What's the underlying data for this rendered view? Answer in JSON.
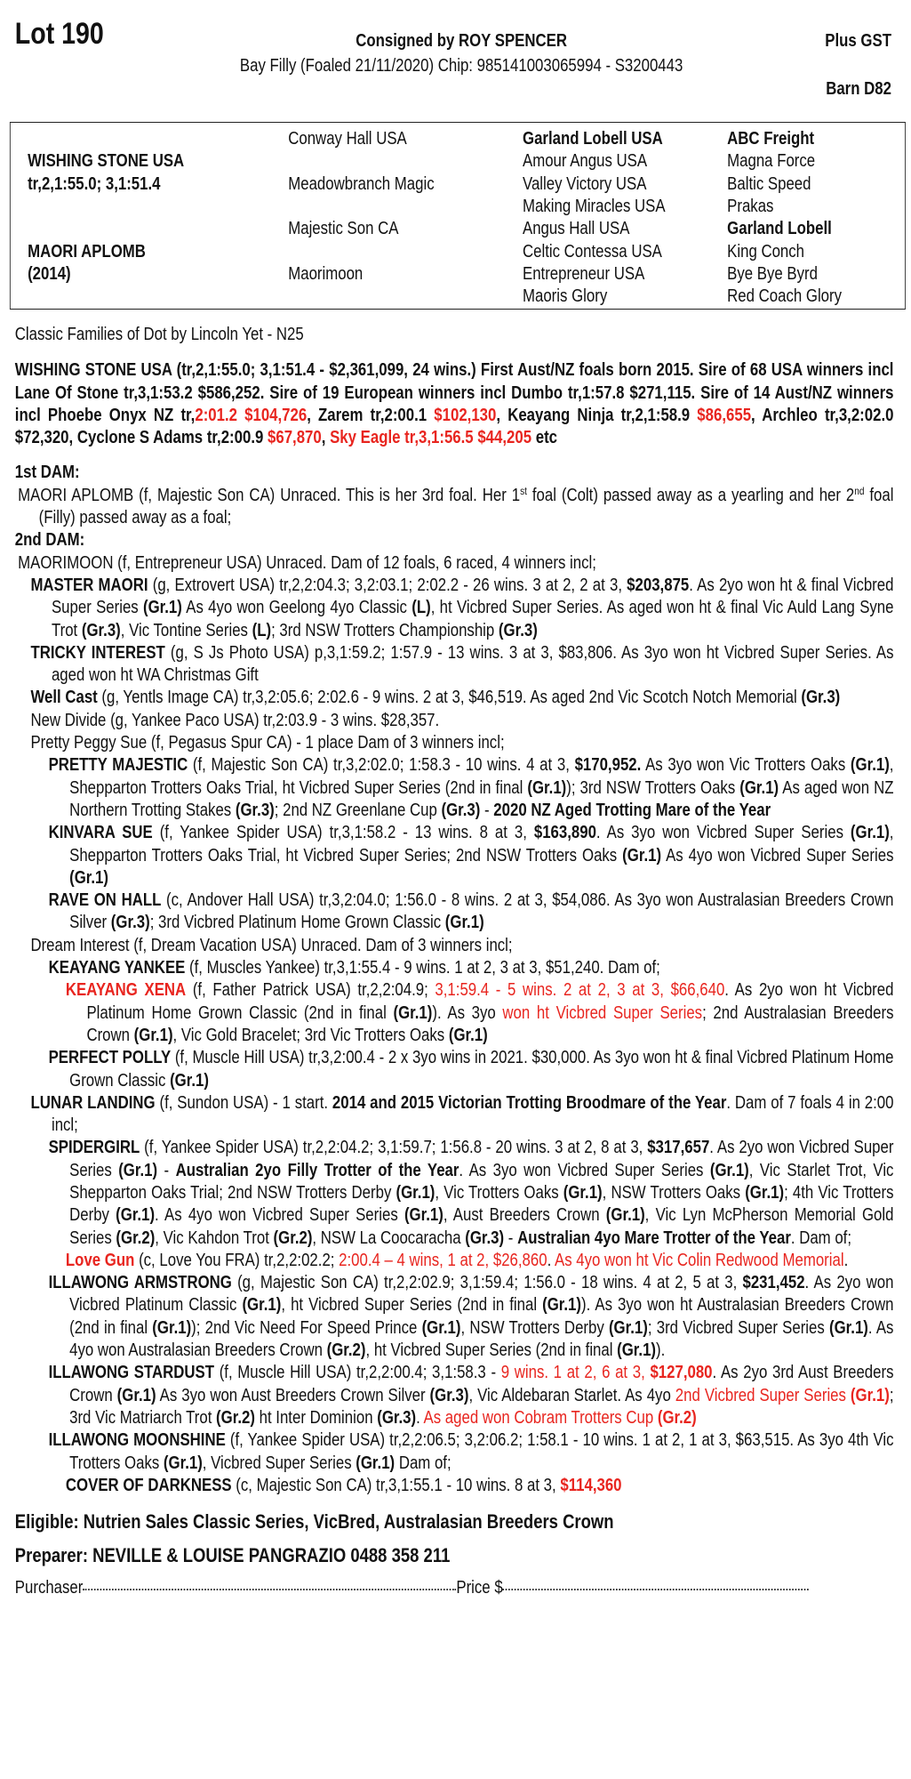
{
  "header": {
    "lot": "Lot 190",
    "consigned": "Consigned by ROY SPENCER",
    "plus_gst": "Plus GST",
    "description": "Bay Filly (Foaled 21/11/2020) Chip: 985141003065994 - S3200443",
    "barn": "Barn D82"
  },
  "pedigree": {
    "sire_name": "WISHING STONE USA",
    "sire_record": "tr,2,1:55.0; 3,1:51.4",
    "dam_name": "MAORI APLOMB",
    "dam_year": "(2014)",
    "gen2": [
      "Conway Hall USA",
      "Meadowbranch Magic",
      "Majestic Son CA",
      "Maorimoon"
    ],
    "gen3": [
      "Garland Lobell USA",
      "Amour Angus USA",
      "Valley Victory USA",
      "Making Miracles USA",
      "Angus Hall USA",
      "Celtic Contessa USA",
      "Entrepreneur USA",
      "Maoris Glory"
    ],
    "gen4": [
      "ABC Freight",
      "Magna Force",
      "Baltic Speed",
      "Prakas",
      "Garland Lobell",
      "King Conch",
      "Bye Bye Byrd",
      "Red Coach Glory"
    ]
  },
  "family": "Classic Families of Dot by Lincoln Yet - N25",
  "sire_text": [
    [
      "WISHING STONE USA (tr,2,1:55.0; 3,1:51.4 - $2,361,099, 24 wins.) First Aust/NZ foals born 2015. Sire of 68 USA winners incl Lane Of Stone tr,3,1:53.2 $586,252. Sire of 19 European winners incl Dumbo tr,1:57.8 $271,115. Sire of 14 Aust/NZ winners incl Phoebe Onyx NZ tr,",
      "b"
    ],
    [
      "2:01.2 $104,726",
      "br"
    ],
    [
      ", Zarem tr,2:00.1 ",
      "b"
    ],
    [
      "$102,130",
      "br"
    ],
    [
      ", Keayang Ninja tr,2,1:58.9 ",
      "b"
    ],
    [
      "$86,655",
      "br"
    ],
    [
      ", Archleo tr,3,2:02.0 $72,320, Cyclone S Adams tr,2:00.9 ",
      "b"
    ],
    [
      "$67,870",
      "br"
    ],
    [
      ", ",
      "b"
    ],
    [
      "Sky Eagle tr,3,1:56.5 $44,205",
      "br"
    ],
    [
      " etc",
      "b"
    ]
  ],
  "dams": [
    {
      "heading": "1st DAM:",
      "entries": [
        {
          "level": 0,
          "segments": [
            [
              "MAORI APLOMB (f, Majestic Son CA) Unraced. This is her 3rd foal. Her 1",
              ""
            ],
            [
              "st",
              "sup"
            ],
            [
              " foal (Colt) passed away as a yearling and her 2",
              ""
            ],
            [
              "nd",
              "sup"
            ],
            [
              " foal (Filly) passed away as a foal;",
              ""
            ]
          ]
        }
      ]
    },
    {
      "heading": "2nd DAM:",
      "entries": [
        {
          "level": 0,
          "segments": [
            [
              "MAORIMOON (f, Entrepreneur USA) Unraced. Dam of 12 foals, 6 raced, 4 winners incl;",
              ""
            ]
          ]
        },
        {
          "level": 1,
          "segments": [
            [
              "MASTER MAORI",
              "b"
            ],
            [
              " (g, Extrovert USA) tr,2,2:04.3; 3,2:03.1; 2:02.2 - 26 wins. 3 at 2, 2 at 3, ",
              ""
            ],
            [
              "$203,875",
              "b"
            ],
            [
              ". As 2yo won ht & final Vicbred Super Series ",
              ""
            ],
            [
              "(Gr.1)",
              "b"
            ],
            [
              " As 4yo won Geelong 4yo Classic ",
              ""
            ],
            [
              "(L)",
              "b"
            ],
            [
              ", ht Vicbred Super Series. As aged won ht & final Vic Auld Lang Syne Trot ",
              ""
            ],
            [
              "(Gr.3)",
              "b"
            ],
            [
              ", Vic Tontine Series ",
              ""
            ],
            [
              "(L)",
              "b"
            ],
            [
              "; 3rd NSW Trotters Championship ",
              ""
            ],
            [
              "(Gr.3)",
              "b"
            ]
          ]
        },
        {
          "level": 1,
          "segments": [
            [
              "TRICKY INTEREST",
              "b"
            ],
            [
              " (g, S Js Photo USA) p,3,1:59.2; 1:57.9 - 13 wins. 3 at 3, $83,806. As 3yo won ht Vicbred Super Series. As aged won ht WA Christmas Gift",
              ""
            ]
          ]
        },
        {
          "level": 1,
          "segments": [
            [
              "Well Cast",
              "b"
            ],
            [
              " (g, Yentls Image CA) tr,3,2:05.6; 2:02.6 - 9 wins. 2 at 3, $46,519. As aged 2nd Vic Scotch Notch Memorial ",
              ""
            ],
            [
              "(Gr.3)",
              "b"
            ]
          ]
        },
        {
          "level": 1,
          "segments": [
            [
              "New Divide (g, Yankee Paco USA) tr,2:03.9 - 3 wins. $28,357.",
              ""
            ]
          ]
        },
        {
          "level": 1,
          "segments": [
            [
              "Pretty Peggy Sue (f, Pegasus Spur CA) - 1 place Dam of 3 winners incl;",
              ""
            ]
          ]
        },
        {
          "level": 2,
          "segments": [
            [
              "PRETTY MAJESTIC",
              "b"
            ],
            [
              " (f, Majestic Son CA) tr,3,2:02.0; 1:58.3 - 10 wins. 4 at 3, ",
              ""
            ],
            [
              "$170,952.",
              "b"
            ],
            [
              " As 3yo won Vic Trotters Oaks ",
              ""
            ],
            [
              "(Gr.1)",
              "b"
            ],
            [
              ", Shepparton Trotters Oaks Trial, ht Vicbred Super Series (2nd in final ",
              ""
            ],
            [
              "(Gr.1)",
              "b"
            ],
            [
              "); 3rd NSW Trotters Oaks ",
              ""
            ],
            [
              "(Gr.1)",
              "b"
            ],
            [
              " As aged won NZ Northern Trotting Stakes ",
              ""
            ],
            [
              "(Gr.3)",
              "b"
            ],
            [
              "; 2nd NZ Greenlane Cup ",
              ""
            ],
            [
              "(Gr.3)",
              "b"
            ],
            [
              " - ",
              ""
            ],
            [
              "2020 NZ Aged Trotting Mare of the Year",
              "b"
            ]
          ]
        },
        {
          "level": 2,
          "segments": [
            [
              "KINVARA SUE",
              "b"
            ],
            [
              " (f, Yankee Spider USA) tr,3,1:58.2 - 13 wins. 8 at 3, ",
              ""
            ],
            [
              "$163,890",
              "b"
            ],
            [
              ". As 3yo won Vicbred Super Series ",
              ""
            ],
            [
              "(Gr.1)",
              "b"
            ],
            [
              ", Shepparton Trotters Oaks Trial, ht Vicbred Super Series; 2nd NSW Trotters Oaks ",
              ""
            ],
            [
              "(Gr.1)",
              "b"
            ],
            [
              " As 4yo won Vicbred Super Series ",
              ""
            ],
            [
              "(Gr.1)",
              "b"
            ]
          ]
        },
        {
          "level": 2,
          "segments": [
            [
              "RAVE ON HALL",
              "b"
            ],
            [
              " (c, Andover Hall USA) tr,3,2:04.0; 1:56.0 - 8 wins. 2 at 3, $54,086. As 3yo won Australasian Breeders Crown Silver ",
              ""
            ],
            [
              "(Gr.3)",
              "b"
            ],
            [
              "; 3rd Vicbred Platinum Home Grown Classic ",
              ""
            ],
            [
              "(Gr.1)",
              "b"
            ]
          ]
        },
        {
          "level": 1,
          "segments": [
            [
              "Dream Interest (f, Dream Vacation USA) Unraced. Dam of 3 winners incl;",
              ""
            ]
          ]
        },
        {
          "level": 2,
          "segments": [
            [
              "KEAYANG YANKEE",
              "b"
            ],
            [
              " (f, Muscles Yankee) tr,3,1:55.4 - 9 wins. 1 at 2, 3 at 3, $51,240. Dam of;",
              ""
            ]
          ]
        },
        {
          "level": 3,
          "segments": [
            [
              "KEAYANG XENA",
              "br"
            ],
            [
              " (f, Father Patrick USA) tr,2,2:04.9; ",
              ""
            ],
            [
              "3,1:59.4 - 5 wins. 2 at 2, 3 at 3, $66,640",
              "r"
            ],
            [
              ". As 2yo won ht Vicbred Platinum Home Grown Classic (2nd in final ",
              ""
            ],
            [
              "(Gr.1)",
              "b"
            ],
            [
              "). As 3yo ",
              ""
            ],
            [
              "won ht Vicbred Super Series",
              "r"
            ],
            [
              "; 2nd Australasian Breeders Crown ",
              ""
            ],
            [
              "(Gr.1)",
              "b"
            ],
            [
              ", Vic Gold Bracelet; 3rd Vic Trotters Oaks ",
              ""
            ],
            [
              "(Gr.1)",
              "b"
            ]
          ]
        },
        {
          "level": 2,
          "segments": [
            [
              "PERFECT POLLY",
              "b"
            ],
            [
              " (f, Muscle Hill USA) tr,3,2:00.4 - 2 x 3yo wins in 2021. $30,000. As 3yo won ht & final Vicbred Platinum Home Grown Classic ",
              ""
            ],
            [
              "(Gr.1)",
              "b"
            ]
          ]
        },
        {
          "level": 1,
          "segments": [
            [
              "LUNAR LANDING",
              "b"
            ],
            [
              " (f, Sundon USA) - 1 start. ",
              ""
            ],
            [
              "2014 and 2015 Victorian Trotting Broodmare of the Year",
              "b"
            ],
            [
              ". Dam of 7 foals 4 in 2:00 incl;",
              ""
            ]
          ]
        },
        {
          "level": 2,
          "segments": [
            [
              "SPIDERGIRL",
              "b"
            ],
            [
              " (f, Yankee Spider USA) tr,2,2:04.2; 3,1:59.7; 1:56.8 - 20 wins. 3 at 2, 8 at 3, ",
              ""
            ],
            [
              "$317,657",
              "b"
            ],
            [
              ". As 2yo won Vicbred Super Series ",
              ""
            ],
            [
              "(Gr.1)",
              "b"
            ],
            [
              " - ",
              ""
            ],
            [
              "Australian 2yo Filly Trotter of the Year",
              "b"
            ],
            [
              ". As 3yo won Vicbred Super Series ",
              ""
            ],
            [
              "(Gr.1)",
              "b"
            ],
            [
              ", Vic Starlet Trot, Vic Shepparton Oaks Trial; 2nd NSW Trotters Derby ",
              ""
            ],
            [
              "(Gr.1)",
              "b"
            ],
            [
              ", Vic Trotters Oaks ",
              ""
            ],
            [
              "(Gr.1)",
              "b"
            ],
            [
              ", NSW Trotters Oaks ",
              ""
            ],
            [
              "(Gr.1)",
              "b"
            ],
            [
              "; 4th Vic Trotters Derby ",
              ""
            ],
            [
              "(Gr.1)",
              "b"
            ],
            [
              ". As 4yo won Vicbred Super Series ",
              ""
            ],
            [
              "(Gr.1)",
              "b"
            ],
            [
              ", Aust Breeders Crown ",
              ""
            ],
            [
              "(Gr.1)",
              "b"
            ],
            [
              ", Vic Lyn McPherson Memorial Gold Series ",
              ""
            ],
            [
              "(Gr.2)",
              "b"
            ],
            [
              ", Vic Kahdon Trot ",
              ""
            ],
            [
              "(Gr.2)",
              "b"
            ],
            [
              ", NSW La Coocaracha ",
              ""
            ],
            [
              "(Gr.3)",
              "b"
            ],
            [
              " - ",
              ""
            ],
            [
              "Australian 4yo Mare Trotter of the Year",
              "b"
            ],
            [
              ". Dam of;",
              ""
            ]
          ]
        },
        {
          "level": 3,
          "segments": [
            [
              "Love Gun",
              "br"
            ],
            [
              " (c, Love You FRA) tr,2,2:02.2; ",
              ""
            ],
            [
              "2:00.4 – 4 wins, 1 at 2, $26,860",
              "r"
            ],
            [
              ". ",
              ""
            ],
            [
              "As 4yo won ht Vic Colin Redwood Memorial",
              "r"
            ],
            [
              ".",
              ""
            ]
          ]
        },
        {
          "level": 2,
          "segments": [
            [
              "ILLAWONG ARMSTRONG",
              "b"
            ],
            [
              " (g, Majestic Son CA) tr,2,2:02.9; 3,1:59.4; 1:56.0 - 18 wins. 4 at 2, 5 at 3, ",
              ""
            ],
            [
              "$231,452",
              "b"
            ],
            [
              ". As 2yo won Vicbred Platinum Classic ",
              ""
            ],
            [
              "(Gr.1)",
              "b"
            ],
            [
              ", ht Vicbred Super Series (2nd in final ",
              ""
            ],
            [
              "(Gr.1)",
              "b"
            ],
            [
              "). As 3yo won ht Australasian Breeders Crown (2nd in final ",
              ""
            ],
            [
              "(Gr.1)",
              "b"
            ],
            [
              "); 2nd Vic Need For Speed Prince ",
              ""
            ],
            [
              "(Gr.1)",
              "b"
            ],
            [
              ", NSW Trotters Derby ",
              ""
            ],
            [
              "(Gr.1)",
              "b"
            ],
            [
              "; 3rd Vicbred Super Series ",
              ""
            ],
            [
              "(Gr.1)",
              "b"
            ],
            [
              ". As 4yo won Australasian Breeders Crown ",
              ""
            ],
            [
              "(Gr.2)",
              "b"
            ],
            [
              ", ht Vicbred Super Series (2nd in final ",
              ""
            ],
            [
              "(Gr.1)",
              "b"
            ],
            [
              ").",
              ""
            ]
          ]
        },
        {
          "level": 2,
          "segments": [
            [
              "ILLAWONG STARDUST",
              "b"
            ],
            [
              " (f, Muscle Hill USA) tr,2,2:00.4; 3,1:58.3 - ",
              ""
            ],
            [
              "9 wins. 1 at 2, 6 at 3, ",
              "r"
            ],
            [
              "$127,080",
              "br"
            ],
            [
              ". As 2yo 3rd Aust Breeders Crown ",
              ""
            ],
            [
              "(Gr.1)",
              "b"
            ],
            [
              " As 3yo won Aust Breeders Crown Silver ",
              ""
            ],
            [
              "(Gr.3)",
              "b"
            ],
            [
              ", Vic Aldebaran Starlet. As 4yo ",
              ""
            ],
            [
              "2nd Vicbred Super Series ",
              "r"
            ],
            [
              "(Gr.1)",
              "br"
            ],
            [
              "; 3rd Vic Matriarch Trot ",
              ""
            ],
            [
              "(Gr.2)",
              "b"
            ],
            [
              " ht Inter Dominion ",
              ""
            ],
            [
              "(Gr.3)",
              "b"
            ],
            [
              ". ",
              ""
            ],
            [
              "As aged won Cobram Trotters Cup ",
              "r"
            ],
            [
              "(Gr.2)",
              "br"
            ]
          ]
        },
        {
          "level": 2,
          "segments": [
            [
              "ILLAWONG MOONSHINE",
              "b"
            ],
            [
              " (f, Yankee Spider USA) tr,2,2:06.5; 3,2:06.2; 1:58.1 - 10 wins. 1 at 2, 1 at 3, $63,515. As 3yo 4th Vic Trotters Oaks ",
              ""
            ],
            [
              "(Gr.1)",
              "b"
            ],
            [
              ", Vicbred Super Series ",
              ""
            ],
            [
              "(Gr.1)",
              "b"
            ],
            [
              " Dam of;",
              ""
            ]
          ]
        },
        {
          "level": 3,
          "segments": [
            [
              "COVER OF DARKNESS",
              "b"
            ],
            [
              " (c, Majestic Son CA) tr,3,1:55.1 - 10 wins. 8 at 3, ",
              ""
            ],
            [
              "$114,360",
              "br"
            ]
          ]
        }
      ]
    }
  ],
  "eligible": "Eligible: Nutrien Sales Classic Series, VicBred, Australasian Breeders Crown",
  "preparer": "Preparer: NEVILLE & LOUISE PANGRAZIO 0488 358 211",
  "footer": {
    "purchaser_label": "Purchaser",
    "price_label": "Price $"
  },
  "colors": {
    "highlight_red": "#e8251f",
    "text": "#111111"
  }
}
